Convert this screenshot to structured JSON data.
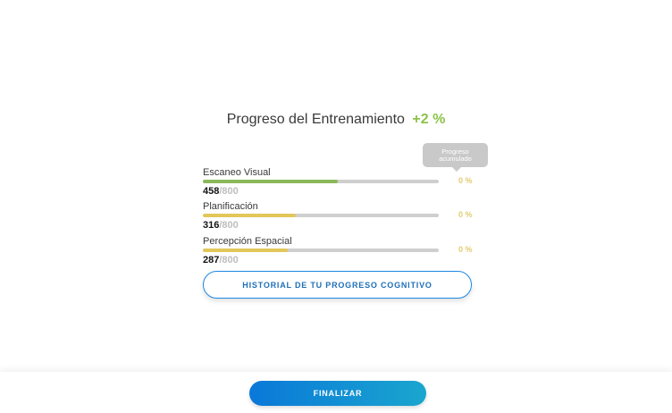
{
  "header": {
    "title": "Progreso del Entrenamiento",
    "delta": "+2 %"
  },
  "tooltip": {
    "line1": "Progreso",
    "line2": "acumulado"
  },
  "metrics": [
    {
      "label": "Escaneo Visual",
      "value": "458",
      "separator": "/",
      "max": "800",
      "progress": 0.5725,
      "color": "#8bb85a",
      "pct": "0 %"
    },
    {
      "label": "Planificación",
      "value": "316",
      "separator": "/",
      "max": "800",
      "progress": 0.395,
      "color": "#e2c75a",
      "pct": "0 %"
    },
    {
      "label": "Percepción Espacial",
      "value": "287",
      "separator": "/",
      "max": "800",
      "progress": 0.35875,
      "color": "#e2c75a",
      "pct": "0 %"
    }
  ],
  "actions": {
    "history_label": "HISTORIAL DE TU PROGRESO COGNITIVO",
    "finish_label": "FINALIZAR"
  }
}
